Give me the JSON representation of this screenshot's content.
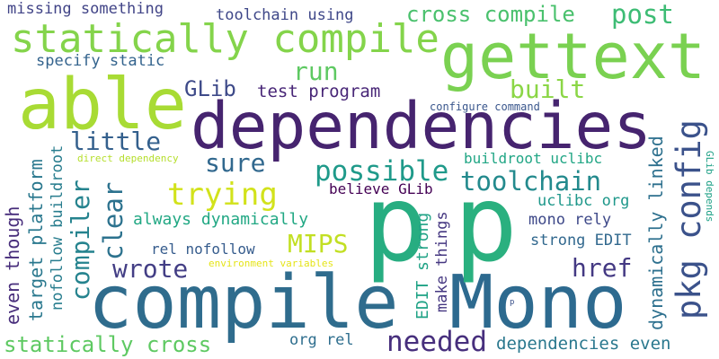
{
  "words": [
    {
      "text": "dependencies",
      "color": "#46246f"
    },
    {
      "text": "compile",
      "color": "#2f6c8d"
    },
    {
      "text": "Mono",
      "color": "#2d6a8f"
    },
    {
      "text": "gettext",
      "color": "#7ad151"
    },
    {
      "text": "p",
      "color": "#27ad81"
    },
    {
      "text": "p",
      "color": "#2ab07f"
    },
    {
      "text": "able",
      "color": "#a8db34"
    },
    {
      "text": "statically compile",
      "color": "#84d44b"
    },
    {
      "text": "pkg config",
      "color": "#3b528b"
    },
    {
      "text": "possible",
      "color": "#1f9a8a"
    },
    {
      "text": "toolchain",
      "color": "#238a8d"
    },
    {
      "text": "trying",
      "color": "#d2e21b"
    },
    {
      "text": "MIPS",
      "color": "#c2df23"
    },
    {
      "text": "wrote",
      "color": "#433e85"
    },
    {
      "text": "href",
      "color": "#443983"
    },
    {
      "text": "needed",
      "color": "#472f7d"
    },
    {
      "text": "run",
      "color": "#5ec962"
    },
    {
      "text": "built",
      "color": "#8bd646"
    },
    {
      "text": "GLib",
      "color": "#3e4a89"
    },
    {
      "text": "little",
      "color": "#34608d"
    },
    {
      "text": "sure",
      "color": "#31688e"
    },
    {
      "text": "clear",
      "color": "#2c728e"
    },
    {
      "text": "compiler",
      "color": "#25838e"
    },
    {
      "text": "cross compile",
      "color": "#4ac16d"
    },
    {
      "text": "post",
      "color": "#3dbc74"
    },
    {
      "text": "missing something",
      "color": "#414487"
    },
    {
      "text": "toolchain using",
      "color": "#3f4889"
    },
    {
      "text": "specify static",
      "color": "#33638d"
    },
    {
      "text": "test program",
      "color": "#482677"
    },
    {
      "text": "configure command",
      "color": "#39568c"
    },
    {
      "text": "direct dependency",
      "color": "#b5de2b"
    },
    {
      "text": "buildroot uclibc",
      "color": "#21a685"
    },
    {
      "text": "believe GLib",
      "color": "#440154"
    },
    {
      "text": "always dynamically",
      "color": "#22a884"
    },
    {
      "text": "rel nofollow",
      "color": "#365c8d"
    },
    {
      "text": "environment variables",
      "color": "#e5e419"
    },
    {
      "text": "uclibc org",
      "color": "#1f988b"
    },
    {
      "text": "mono rely",
      "color": "#3e4989"
    },
    {
      "text": "strong EDIT",
      "color": "#31688e"
    },
    {
      "text": "dependencies even",
      "color": "#2a788e"
    },
    {
      "text": "statically cross",
      "color": "#5ec962"
    },
    {
      "text": "org rel",
      "color": "#2e6e8e"
    },
    {
      "text": "even though",
      "color": "#472d7b"
    },
    {
      "text": "target platform",
      "color": "#2a788e"
    },
    {
      "text": "nofollow buildroot",
      "color": "#287d8e"
    },
    {
      "text": "EDIT strong",
      "color": "#20a386"
    },
    {
      "text": "make things",
      "color": "#453781"
    },
    {
      "text": "dynamically linked",
      "color": "#2d708e"
    },
    {
      "text": "GLib depends",
      "color": "#1fa187"
    },
    {
      "text": "p",
      "color": "#3b528b"
    }
  ]
}
